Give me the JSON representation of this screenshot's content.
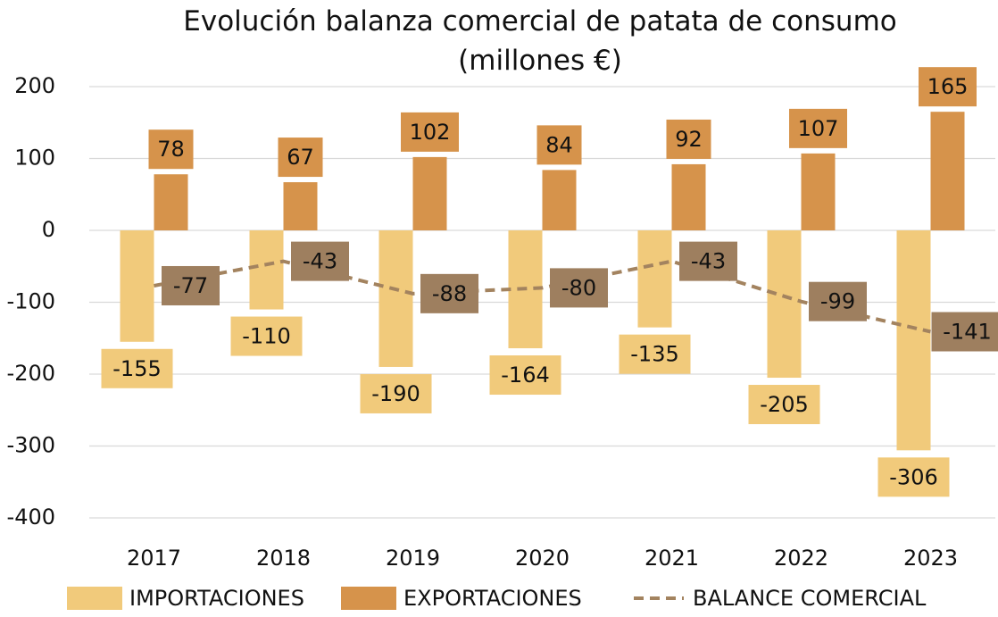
{
  "chart_data": {
    "type": "bar",
    "title": "Evolución balanza comercial de patata de consumo (millones €)",
    "categories": [
      "2017",
      "2018",
      "2019",
      "2020",
      "2021",
      "2022",
      "2023"
    ],
    "series": [
      {
        "name": "IMPORTACIONES",
        "type": "bar",
        "color": "#f1ca7b",
        "values": [
          -155,
          -110,
          -190,
          -164,
          -135,
          -205,
          -306
        ]
      },
      {
        "name": "EXPORTACIONES",
        "type": "bar",
        "color": "#d6934b",
        "values": [
          78,
          67,
          102,
          84,
          92,
          107,
          165
        ]
      },
      {
        "name": "BALANCE COMERCIAL",
        "type": "line",
        "color": "#a3835f",
        "label_color": "#9e7f5f",
        "values": [
          -77,
          -43,
          -88,
          -80,
          -43,
          -99,
          -141
        ]
      }
    ],
    "ylim": [
      -400,
      200
    ],
    "yticks": [
      -400,
      -300,
      -200,
      -100,
      0,
      100,
      200
    ],
    "negative_tick_color": "#e00000",
    "grid": true,
    "legend": "bottom"
  }
}
